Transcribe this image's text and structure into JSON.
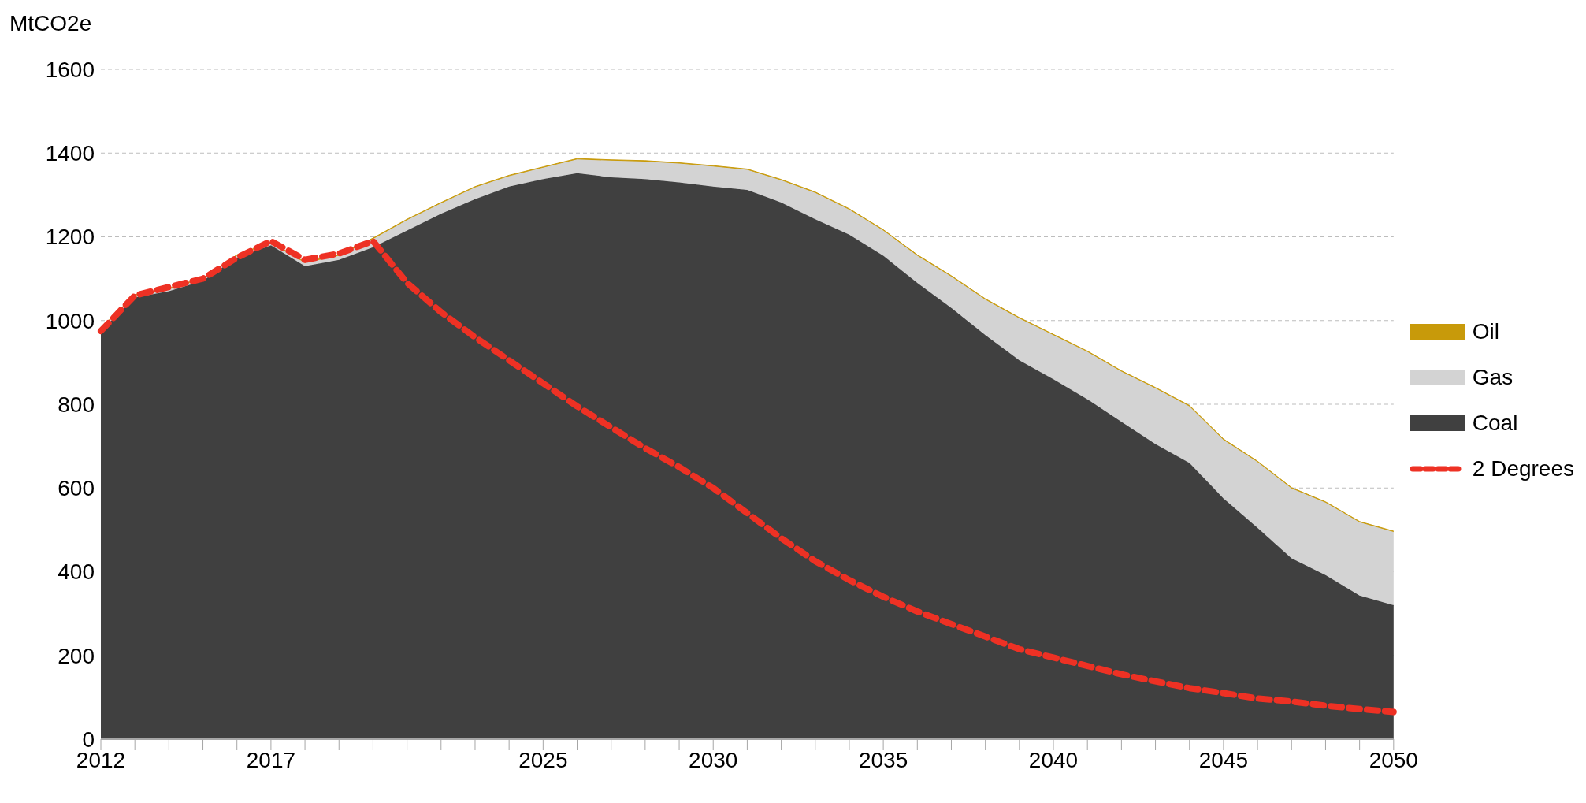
{
  "chart_data": {
    "type": "area",
    "ylabel": "MtCO2e",
    "stacked": true,
    "legend": "right",
    "grid": "y",
    "ylim": [
      0,
      1600
    ],
    "yticks": [
      0,
      200,
      400,
      600,
      800,
      1000,
      1200,
      1400,
      1600
    ],
    "categories": [
      "2012",
      null,
      null,
      null,
      null,
      "2017",
      null,
      null,
      null,
      null,
      null,
      null,
      null,
      "2025",
      null,
      null,
      null,
      null,
      "2030",
      null,
      null,
      null,
      null,
      "2035",
      null,
      null,
      null,
      null,
      "2040",
      null,
      null,
      null,
      null,
      "2045",
      null,
      null,
      null,
      null,
      "2050"
    ],
    "series": [
      {
        "name": "Coal",
        "color": "#404040",
        "values": [
          975,
          1055,
          1070,
          1095,
          1150,
          1180,
          1130,
          1145,
          1175,
          1215,
          1255,
          1290,
          1320,
          1338,
          1352,
          1342,
          1338,
          1330,
          1320,
          1312,
          1282,
          1242,
          1205,
          1155,
          1090,
          1030,
          965,
          905,
          860,
          812,
          758,
          705,
          660,
          575,
          505,
          432,
          392,
          343,
          320
        ]
      },
      {
        "name": "Gas",
        "color": "#d3d3d3",
        "values": [
          5,
          5,
          5,
          5,
          5,
          5,
          8,
          10,
          20,
          25,
          25,
          28,
          25,
          27,
          33,
          40,
          42,
          45,
          48,
          48,
          53,
          63,
          60,
          60,
          65,
          75,
          85,
          100,
          105,
          113,
          120,
          133,
          135,
          140,
          157,
          167,
          173,
          175,
          175
        ]
      },
      {
        "name": "Oil",
        "color": "#c89a0a",
        "values": [
          2,
          2,
          2,
          2,
          2,
          2,
          2,
          2,
          2,
          2,
          2,
          2,
          2,
          2,
          2,
          2,
          2,
          2,
          2,
          2,
          2,
          2,
          2,
          2,
          2,
          2,
          2,
          2,
          2,
          2,
          2,
          2,
          2,
          2,
          2,
          2,
          2,
          2,
          2
        ]
      },
      {
        "name": "2 Degrees",
        "type": "line",
        "line_style": "dashed",
        "color": "#ee3124",
        "values": [
          975,
          1060,
          1080,
          1100,
          1150,
          1190,
          1145,
          1160,
          1190,
          1090,
          1020,
          960,
          905,
          850,
          795,
          745,
          695,
          650,
          600,
          540,
          480,
          425,
          380,
          340,
          305,
          275,
          245,
          215,
          195,
          175,
          155,
          138,
          122,
          110,
          97,
          90,
          80,
          72,
          65
        ]
      }
    ]
  }
}
